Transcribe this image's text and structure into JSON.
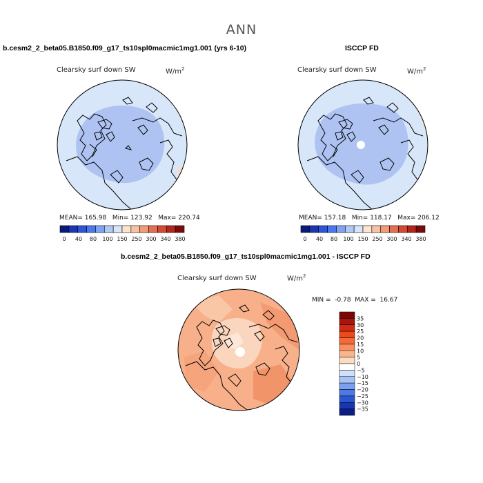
{
  "main_title": "ANN",
  "panels": [
    {
      "title": "b.cesm2_2_beta05.B1850.f09_g17_ts10spl0macmic1mg1.001 (yrs 6-10)",
      "variable": "Clearsky surf down SW",
      "units_base": "W/m",
      "units_exp": "2",
      "stats": "MEAN= 165.98   Min= 123.92   Max= 220.74"
    },
    {
      "title": "ISCCP FD",
      "variable": "Clearsky surf down SW",
      "units_base": "W/m",
      "units_exp": "2",
      "stats": "MEAN= 157.18   Min= 118.17   Max= 206.12"
    },
    {
      "title": "b.cesm2_2_beta05.B1850.f09_g17_ts10spl0macmic1mg1.001 - ISCCP FD",
      "variable": "Clearsky surf down SW",
      "units_base": "W/m",
      "units_exp": "2",
      "stats": "MIN =  -0.78  MAX =  16.67"
    }
  ],
  "chart_data": [
    {
      "type": "heatmap",
      "projection": "north polar stereographic",
      "title": "b.cesm2_2_beta05.B1850.f09_g17_ts10spl0macmic1mg1.001 (yrs 6-10)",
      "variable": "Clearsky surf down SW",
      "units": "W/m2",
      "mean": 165.98,
      "min": 123.92,
      "max": 220.74,
      "colorbar": {
        "orientation": "horizontal",
        "tick_labels": [
          "0",
          "40",
          "80",
          "100",
          "150",
          "250",
          "300",
          "340",
          "380"
        ],
        "colors": [
          "#0a1a78",
          "#1a36b4",
          "#2e55d8",
          "#4b78ee",
          "#7fa2f2",
          "#b0c8f4",
          "#d7e5fa",
          "#fbe4d2",
          "#f7c2a2",
          "#f09c76",
          "#e47050",
          "#d34a32",
          "#b3261c",
          "#7a0b0b"
        ]
      }
    },
    {
      "type": "heatmap",
      "projection": "north polar stereographic",
      "title": "ISCCP FD",
      "variable": "Clearsky surf down SW",
      "units": "W/m2",
      "mean": 157.18,
      "min": 118.17,
      "max": 206.12,
      "colorbar": {
        "orientation": "horizontal",
        "tick_labels": [
          "0",
          "40",
          "80",
          "100",
          "150",
          "250",
          "300",
          "340",
          "380"
        ],
        "colors": [
          "#0a1a78",
          "#1a36b4",
          "#2e55d8",
          "#4b78ee",
          "#7fa2f2",
          "#b0c8f4",
          "#d7e5fa",
          "#fbe4d2",
          "#f7c2a2",
          "#f09c76",
          "#e47050",
          "#d34a32",
          "#b3261c",
          "#7a0b0b"
        ]
      }
    },
    {
      "type": "heatmap",
      "projection": "north polar stereographic",
      "title": "b.cesm2_2_beta05.B1850.f09_g17_ts10spl0macmic1mg1.001 - ISCCP FD",
      "variable": "Clearsky surf down SW",
      "units": "W/m2",
      "min": -0.78,
      "max": 16.67,
      "colorbar": {
        "orientation": "vertical",
        "tick_labels": [
          "35",
          "30",
          "25",
          "20",
          "15",
          "10",
          "5",
          "0",
          "−5",
          "−10",
          "−15",
          "−20",
          "−25",
          "−30",
          "−35"
        ],
        "colors": [
          "#7a0606",
          "#a8150c",
          "#cf2a14",
          "#ec4a1c",
          "#f46a36",
          "#f78f5e",
          "#f9b58e",
          "#fbdcc2",
          "#ffffff",
          "#cfe0fb",
          "#a7c3f6",
          "#7aa0ef",
          "#4d79e3",
          "#2c55d0",
          "#1936b0",
          "#0b1d86"
        ]
      }
    }
  ]
}
